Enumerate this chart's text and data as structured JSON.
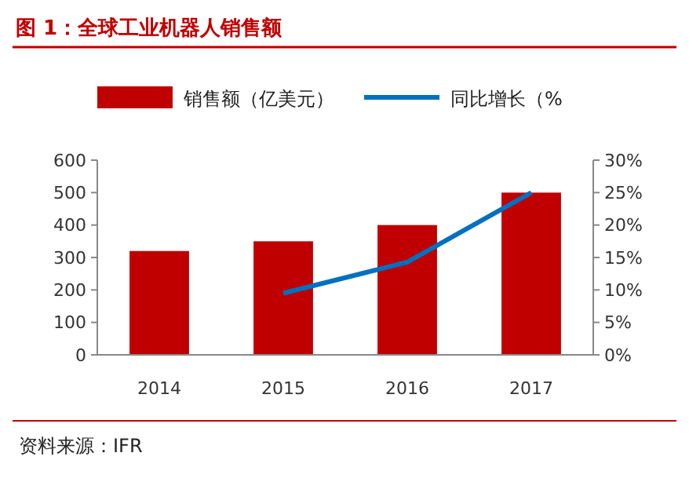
{
  "chart_data": {
    "type": "bar",
    "title": "图 1：全球工业机器人销售额",
    "categories": [
      "2014",
      "2015",
      "2016",
      "2017"
    ],
    "series": [
      {
        "name": "销售额（亿美元）",
        "color": "#c00000",
        "values": [
          320,
          350,
          400,
          500
        ]
      },
      {
        "name": "同比增长（%",
        "type": "line",
        "axis": "y2",
        "color": "#0070c0",
        "values": [
          null,
          9.5,
          14.3,
          25
        ]
      }
    ],
    "ylim": [
      0,
      600
    ],
    "yticks": [
      0,
      100,
      200,
      300,
      400,
      500,
      600
    ],
    "y2lim": [
      0,
      30
    ],
    "y2ticks": [
      {
        "value": 0,
        "label": "0%"
      },
      {
        "value": 5,
        "label": "5%"
      },
      {
        "value": 10,
        "label": "10%"
      },
      {
        "value": 15,
        "label": "15%"
      },
      {
        "value": 20,
        "label": "20%"
      },
      {
        "value": 25,
        "label": "25%"
      },
      {
        "value": 30,
        "label": "30%"
      }
    ],
    "legend": "top",
    "grid": false,
    "marker": "none",
    "line_style": "solid",
    "annotations": [
      "资料来源：IFR"
    ]
  }
}
